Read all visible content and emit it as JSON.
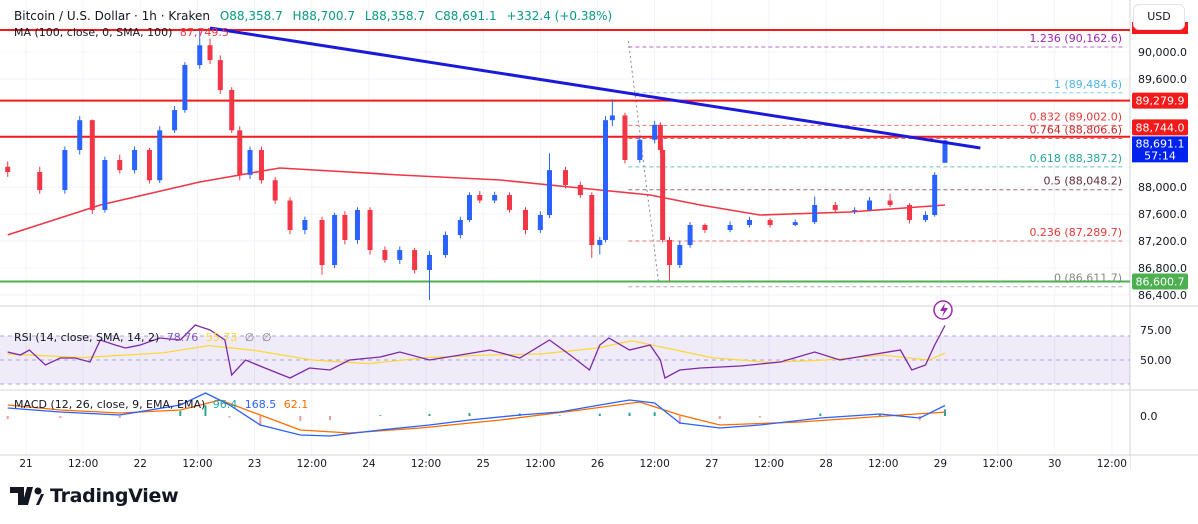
{
  "header": {
    "symbol": "Bitcoin / U.S. Dollar · 1h · Kraken",
    "open": "O88,358.7",
    "high": "H88,700.7",
    "low": "L88,358.7",
    "close": "C88,691.1",
    "change": "+332.4 (+0.38%)"
  },
  "ma": {
    "label": "MA (100, close, 0, SMA, 100)",
    "value": "87,749.5",
    "color": "#f23645"
  },
  "currency_button": "USD",
  "rsi": {
    "label": "RSI (14, close, SMA, 14, 2)",
    "value": "78.76",
    "sma_value": "55.73",
    "extra1": "∅",
    "extra2": "∅",
    "axis": [
      "75.00",
      "50.00"
    ]
  },
  "macd": {
    "label": "MACD (12, 26, close, 9, EMA, EMA)",
    "hist": "96.4",
    "macd": "168.5",
    "signal": "62.1",
    "axis": [
      "0.0"
    ]
  },
  "brand": "TradingView",
  "colors": {
    "up": "#2962ff",
    "down": "#f23645",
    "trend": "#1a1adb",
    "support": "#4caf50",
    "resistance": "#f21a1a"
  },
  "price_axis": [
    "90,000.0",
    "89,600.0",
    "88,000.0",
    "87,600.0",
    "87,200.0",
    "86,800.0",
    "86,400.0"
  ],
  "price_axis_values": [
    90000,
    89600,
    88000,
    87600,
    87200,
    86800,
    86400
  ],
  "price_tags": [
    {
      "text": "89,279.9",
      "value": 89279.9,
      "color": "#f21a1a"
    },
    {
      "text": "88,744.0",
      "value": 88744.0,
      "color": "#f21a1a"
    },
    {
      "text": "86,600.7",
      "value": 86600.7,
      "color": "#4caf50"
    }
  ],
  "last_price_tag": {
    "price": "88,691.1",
    "countdown": "57:14",
    "value": 88691.1,
    "color": "#0022ee"
  },
  "time_axis": [
    {
      "day": 21,
      "text": "21"
    },
    {
      "day": 21.5,
      "text": "12:00"
    },
    {
      "day": 22,
      "text": "22"
    },
    {
      "day": 22.5,
      "text": "12:00"
    },
    {
      "day": 23,
      "text": "23"
    },
    {
      "day": 23.5,
      "text": "12:00"
    },
    {
      "day": 24,
      "text": "24"
    },
    {
      "day": 24.5,
      "text": "12:00"
    },
    {
      "day": 25,
      "text": "25"
    },
    {
      "day": 25.5,
      "text": "12:00"
    },
    {
      "day": 26,
      "text": "26"
    },
    {
      "day": 26.5,
      "text": "12:00"
    },
    {
      "day": 27,
      "text": "27"
    },
    {
      "day": 27.5,
      "text": "12:00"
    },
    {
      "day": 28,
      "text": "28"
    },
    {
      "day": 28.5,
      "text": "12:00"
    },
    {
      "day": 29,
      "text": "29"
    },
    {
      "day": 29.5,
      "text": "12:00"
    },
    {
      "day": 30,
      "text": "30"
    },
    {
      "day": 30.5,
      "text": "12:00"
    }
  ],
  "chart_data": {
    "type": "candlestick",
    "x_unit": "day of month",
    "candles": [
      [
        20.84,
        88300,
        88380,
        88150,
        88222
      ],
      [
        21.12,
        88222,
        88300,
        87900,
        87955
      ],
      [
        21.34,
        87955,
        88600,
        87900,
        88548
      ],
      [
        21.47,
        88548,
        89050,
        88480,
        88990
      ],
      [
        21.58,
        88990,
        89000,
        87600,
        87660
      ],
      [
        21.69,
        87660,
        88450,
        87620,
        88400
      ],
      [
        21.82,
        88400,
        88480,
        88200,
        88250
      ],
      [
        21.95,
        88250,
        88600,
        88200,
        88548
      ],
      [
        22.08,
        88548,
        88580,
        88050,
        88100
      ],
      [
        22.17,
        88100,
        88900,
        88060,
        88840
      ],
      [
        22.3,
        88840,
        89200,
        88800,
        89140
      ],
      [
        22.39,
        89140,
        89850,
        89100,
        89807
      ],
      [
        22.52,
        89807,
        90326,
        89750,
        90100
      ],
      [
        22.61,
        90100,
        90200,
        89820,
        89880
      ],
      [
        22.7,
        89880,
        89950,
        89380,
        89437
      ],
      [
        22.8,
        89437,
        89480,
        88800,
        88840
      ],
      [
        22.87,
        88840,
        88900,
        88100,
        88180
      ],
      [
        22.96,
        88180,
        88600,
        88120,
        88548
      ],
      [
        23.06,
        88548,
        88600,
        88050,
        88100
      ],
      [
        23.18,
        88100,
        88150,
        87750,
        87800
      ],
      [
        23.31,
        87800,
        87850,
        87300,
        87363
      ],
      [
        23.44,
        87363,
        87560,
        87300,
        87511
      ],
      [
        23.59,
        87511,
        87560,
        86700,
        86844
      ],
      [
        23.7,
        86844,
        87620,
        86800,
        87585
      ],
      [
        23.79,
        87585,
        87640,
        87150,
        87215
      ],
      [
        23.9,
        87215,
        87700,
        87160,
        87660
      ],
      [
        24.01,
        87660,
        87700,
        87000,
        87066
      ],
      [
        24.14,
        87066,
        87120,
        86880,
        86920
      ],
      [
        24.27,
        86920,
        87120,
        86860,
        87066
      ],
      [
        24.4,
        87066,
        87100,
        86720,
        86770
      ],
      [
        24.53,
        86770,
        87050,
        86326,
        86993
      ],
      [
        24.67,
        86993,
        87340,
        86950,
        87289
      ],
      [
        24.8,
        87289,
        87560,
        87240,
        87511
      ],
      [
        24.88,
        87511,
        87920,
        87480,
        87881
      ],
      [
        24.97,
        87881,
        87940,
        87760,
        87800
      ],
      [
        25.1,
        87800,
        87930,
        87760,
        87881
      ],
      [
        25.23,
        87881,
        87920,
        87620,
        87660
      ],
      [
        25.37,
        87660,
        87700,
        87300,
        87363
      ],
      [
        25.5,
        87363,
        87640,
        87320,
        87585
      ],
      [
        25.58,
        87585,
        88500,
        87540,
        88250
      ],
      [
        25.72,
        88250,
        88300,
        87980,
        88030
      ],
      [
        25.85,
        88030,
        88080,
        87840,
        87881
      ],
      [
        25.95,
        87881,
        87920,
        86950,
        87140
      ],
      [
        26.02,
        87140,
        87260,
        87000,
        87215
      ],
      [
        26.07,
        87215,
        89050,
        87180,
        88990
      ],
      [
        26.13,
        88990,
        89300,
        88900,
        89060
      ],
      [
        26.24,
        89060,
        89100,
        88350,
        88400
      ],
      [
        26.37,
        88400,
        88760,
        88360,
        88700
      ],
      [
        26.5,
        88700,
        88980,
        88650,
        88920
      ],
      [
        26.55,
        88920,
        88960,
        88500,
        88548
      ],
      [
        26.57,
        88548,
        88600,
        87180,
        87215
      ],
      [
        26.63,
        87215,
        87260,
        86612,
        86844
      ],
      [
        26.72,
        86844,
        87200,
        86800,
        87140
      ],
      [
        26.81,
        87140,
        87480,
        87100,
        87437
      ],
      [
        26.94,
        87437,
        87460,
        87320,
        87363
      ],
      [
        27.16,
        87363,
        87490,
        87330,
        87437
      ],
      [
        27.33,
        87437,
        87560,
        87400,
        87511
      ],
      [
        27.51,
        87511,
        87540,
        87400,
        87437
      ],
      [
        27.73,
        87437,
        87520,
        87420,
        87480
      ],
      [
        27.9,
        87480,
        87860,
        87450,
        87733
      ],
      [
        28.08,
        87733,
        87780,
        87620,
        87660
      ],
      [
        28.25,
        87660,
        87700,
        87600,
        87660
      ],
      [
        28.38,
        87660,
        87850,
        87640,
        87800
      ],
      [
        28.56,
        87800,
        87900,
        87700,
        87733
      ],
      [
        28.73,
        87733,
        87760,
        87460,
        87511
      ],
      [
        28.87,
        87511,
        87640,
        87480,
        87585
      ],
      [
        28.95,
        87585,
        88220,
        87560,
        88180
      ],
      [
        29.04,
        88358.7,
        88700.7,
        88358.7,
        88691.1
      ]
    ],
    "ma100": [
      [
        20.84,
        87290
      ],
      [
        21.65,
        87733
      ],
      [
        22.52,
        88074
      ],
      [
        23.22,
        88281
      ],
      [
        24.27,
        88178
      ],
      [
        25.15,
        88104
      ],
      [
        26.02,
        87955
      ],
      [
        26.46,
        87881
      ],
      [
        26.9,
        87733
      ],
      [
        27.42,
        87585
      ],
      [
        28.21,
        87630
      ],
      [
        29.04,
        87733
      ]
    ],
    "trendline": [
      [
        22.61,
        90355
      ],
      [
        29.35,
        88578
      ]
    ],
    "horizontal_levels": [
      {
        "value": 90326,
        "color": "#f21a1a"
      },
      {
        "value": 89279.9,
        "color": "#f21a1a"
      },
      {
        "value": 88744.0,
        "color": "#f21a1a"
      },
      {
        "value": 86600.7,
        "color": "#4caf50"
      }
    ],
    "fibonacci": {
      "from_day": 26.27,
      "levels": [
        {
          "ratio": "1.236",
          "price": "90,162.6",
          "value": 90162.6,
          "color": "#9c27b0"
        },
        {
          "ratio": "1",
          "price": "89,484.6",
          "value": 89484.6,
          "color": "#4fb3e8"
        },
        {
          "ratio": "0.832",
          "price": "89,002.0",
          "value": 89002.0,
          "color": "#e53935"
        },
        {
          "ratio": "0.764",
          "price": "88,806.6",
          "value": 88806.6,
          "color": "#c62828"
        },
        {
          "ratio": "0.618",
          "price": "88,387.2",
          "value": 88387.2,
          "color": "#26a69a"
        },
        {
          "ratio": "0.5",
          "price": "88,048.2",
          "value": 88048.2,
          "color": "#5d2e3a"
        },
        {
          "ratio": "0.236",
          "price": "87,289.7",
          "value": 87289.7,
          "color": "#e53935"
        },
        {
          "ratio": "0",
          "price": "86,611.7",
          "value": 86611.7,
          "color": "#888888"
        }
      ]
    },
    "rsi": [
      [
        20.84,
        56.7
      ],
      [
        20.95,
        54.2
      ],
      [
        21.03,
        58.3
      ],
      [
        21.17,
        45.8
      ],
      [
        21.3,
        51.7
      ],
      [
        21.43,
        51.7
      ],
      [
        21.56,
        48.3
      ],
      [
        21.65,
        66.7
      ],
      [
        21.78,
        62.5
      ],
      [
        21.87,
        60
      ],
      [
        22.0,
        62.5
      ],
      [
        22.17,
        68.3
      ],
      [
        22.35,
        66.7
      ],
      [
        22.48,
        79.2
      ],
      [
        22.61,
        75
      ],
      [
        22.74,
        66.7
      ],
      [
        22.8,
        37.5
      ],
      [
        22.92,
        50
      ],
      [
        23.09,
        43.3
      ],
      [
        23.31,
        35
      ],
      [
        23.48,
        43.3
      ],
      [
        23.66,
        41.7
      ],
      [
        23.83,
        50
      ],
      [
        24.1,
        52.5
      ],
      [
        24.27,
        56.7
      ],
      [
        24.53,
        50
      ],
      [
        24.8,
        54.2
      ],
      [
        25.06,
        58.3
      ],
      [
        25.32,
        51.7
      ],
      [
        25.58,
        66.7
      ],
      [
        25.76,
        54.2
      ],
      [
        25.93,
        41.7
      ],
      [
        26.02,
        62.5
      ],
      [
        26.1,
        68.3
      ],
      [
        26.28,
        58.3
      ],
      [
        26.46,
        62.5
      ],
      [
        26.55,
        50
      ],
      [
        26.59,
        35
      ],
      [
        26.72,
        41.7
      ],
      [
        26.9,
        43.3
      ],
      [
        27.25,
        45
      ],
      [
        27.6,
        48.3
      ],
      [
        27.9,
        56.7
      ],
      [
        28.12,
        50
      ],
      [
        28.38,
        54.2
      ],
      [
        28.65,
        58.3
      ],
      [
        28.75,
        41.7
      ],
      [
        28.87,
        45.8
      ],
      [
        28.95,
        62.5
      ],
      [
        29.04,
        78.76
      ]
    ],
    "rsi_sma": [
      [
        20.84,
        55
      ],
      [
        21.5,
        52
      ],
      [
        22.2,
        56
      ],
      [
        22.6,
        62
      ],
      [
        23.0,
        58
      ],
      [
        23.5,
        50
      ],
      [
        24.0,
        47
      ],
      [
        24.5,
        52
      ],
      [
        25.0,
        54
      ],
      [
        25.5,
        55
      ],
      [
        26.0,
        60
      ],
      [
        26.3,
        66
      ],
      [
        26.6,
        60
      ],
      [
        27.0,
        52
      ],
      [
        27.5,
        48
      ],
      [
        28.0,
        50
      ],
      [
        28.5,
        54
      ],
      [
        28.9,
        50
      ],
      [
        29.04,
        55.73
      ]
    ],
    "rsi_band": [
      30,
      70
    ],
    "macd_line": [
      [
        20.84,
        128
      ],
      [
        21.3,
        64
      ],
      [
        21.82,
        16
      ],
      [
        22.35,
        176
      ],
      [
        22.57,
        368
      ],
      [
        22.78,
        176
      ],
      [
        23.05,
        -144
      ],
      [
        23.4,
        -304
      ],
      [
        23.66,
        -320
      ],
      [
        24.1,
        -224
      ],
      [
        24.53,
        -144
      ],
      [
        24.88,
        -64
      ],
      [
        25.32,
        16
      ],
      [
        25.67,
        64
      ],
      [
        26.02,
        176
      ],
      [
        26.28,
        256
      ],
      [
        26.5,
        208
      ],
      [
        26.72,
        -112
      ],
      [
        27.07,
        -192
      ],
      [
        27.42,
        -144
      ],
      [
        27.95,
        -32
      ],
      [
        28.47,
        32
      ],
      [
        28.82,
        -32
      ],
      [
        29.04,
        168.5
      ]
    ],
    "signal_line": [
      [
        20.84,
        176
      ],
      [
        21.3,
        96
      ],
      [
        21.82,
        48
      ],
      [
        22.35,
        96
      ],
      [
        22.7,
        256
      ],
      [
        23.05,
        16
      ],
      [
        23.4,
        -224
      ],
      [
        23.83,
        -272
      ],
      [
        24.45,
        -192
      ],
      [
        25.15,
        -64
      ],
      [
        25.85,
        96
      ],
      [
        26.37,
        224
      ],
      [
        26.72,
        16
      ],
      [
        27.07,
        -144
      ],
      [
        27.77,
        -96
      ],
      [
        28.65,
        16
      ],
      [
        29.04,
        62.1
      ]
    ]
  }
}
